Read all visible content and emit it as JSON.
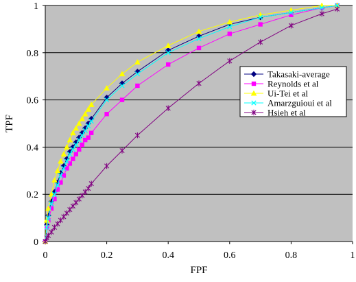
{
  "chart_data": {
    "type": "line",
    "xlabel": "FPF",
    "ylabel": "TPF",
    "xlim": [
      0,
      1
    ],
    "ylim": [
      0,
      1
    ],
    "x_ticks": [
      "0",
      "0.2",
      "0.4",
      "0.6",
      "0.8",
      "1"
    ],
    "y_ticks": [
      "0",
      "0.2",
      "0.4",
      "0.6",
      "0.8",
      "1"
    ],
    "grid": true,
    "plot_background": "#c0c0c0",
    "legend_position": "right",
    "series": [
      {
        "name": "Takasaki-average",
        "color": "#000080",
        "marker": "diamond",
        "x": [
          0,
          0.005,
          0.01,
          0.02,
          0.03,
          0.04,
          0.05,
          0.06,
          0.07,
          0.08,
          0.09,
          0.1,
          0.11,
          0.12,
          0.13,
          0.14,
          0.15,
          0.2,
          0.25,
          0.3,
          0.4,
          0.5,
          0.6,
          0.7,
          0.8,
          0.9,
          0.95
        ],
        "y": [
          0,
          0.07,
          0.11,
          0.17,
          0.21,
          0.25,
          0.29,
          0.32,
          0.35,
          0.38,
          0.4,
          0.42,
          0.44,
          0.46,
          0.48,
          0.5,
          0.52,
          0.61,
          0.67,
          0.72,
          0.81,
          0.87,
          0.92,
          0.95,
          0.97,
          0.99,
          1.0
        ]
      },
      {
        "name": "Reynolds et al",
        "color": "#ff00ff",
        "marker": "square",
        "x": [
          0,
          0.005,
          0.01,
          0.02,
          0.03,
          0.04,
          0.05,
          0.06,
          0.07,
          0.08,
          0.09,
          0.1,
          0.11,
          0.12,
          0.13,
          0.14,
          0.15,
          0.2,
          0.25,
          0.3,
          0.4,
          0.5,
          0.6,
          0.7,
          0.8,
          0.9,
          0.95
        ],
        "y": [
          0,
          0.06,
          0.09,
          0.14,
          0.18,
          0.22,
          0.25,
          0.28,
          0.31,
          0.33,
          0.35,
          0.37,
          0.39,
          0.41,
          0.43,
          0.44,
          0.46,
          0.54,
          0.6,
          0.66,
          0.75,
          0.82,
          0.88,
          0.92,
          0.96,
          0.99,
          1.0
        ]
      },
      {
        "name": "Ui-Tei et al",
        "color": "#ffff00",
        "marker": "triangle",
        "x": [
          0,
          0.005,
          0.01,
          0.02,
          0.03,
          0.04,
          0.05,
          0.06,
          0.07,
          0.08,
          0.09,
          0.1,
          0.11,
          0.12,
          0.13,
          0.14,
          0.15,
          0.2,
          0.25,
          0.3,
          0.4,
          0.5,
          0.6,
          0.7,
          0.8,
          0.9,
          0.95
        ],
        "y": [
          0,
          0.09,
          0.14,
          0.2,
          0.26,
          0.3,
          0.34,
          0.37,
          0.4,
          0.43,
          0.46,
          0.48,
          0.5,
          0.52,
          0.54,
          0.56,
          0.58,
          0.65,
          0.71,
          0.76,
          0.83,
          0.89,
          0.93,
          0.96,
          0.98,
          1.0,
          1.0
        ]
      },
      {
        "name": "Amarzguioui et al",
        "color": "#00ffff",
        "marker": "x",
        "x": [
          0,
          0.005,
          0.01,
          0.02,
          0.03,
          0.04,
          0.05,
          0.06,
          0.07,
          0.08,
          0.09,
          0.1,
          0.11,
          0.12,
          0.13,
          0.14,
          0.15,
          0.2,
          0.25,
          0.3,
          0.4,
          0.5,
          0.6,
          0.7,
          0.8,
          0.9,
          0.95
        ],
        "y": [
          0,
          0.06,
          0.1,
          0.16,
          0.2,
          0.24,
          0.28,
          0.31,
          0.34,
          0.37,
          0.39,
          0.41,
          0.43,
          0.45,
          0.47,
          0.49,
          0.51,
          0.6,
          0.66,
          0.71,
          0.8,
          0.86,
          0.91,
          0.95,
          0.97,
          0.99,
          1.0
        ]
      },
      {
        "name": "Hsieh et al",
        "color": "#800080",
        "marker": "asterisk",
        "x": [
          0,
          0.005,
          0.01,
          0.02,
          0.03,
          0.04,
          0.05,
          0.06,
          0.07,
          0.08,
          0.09,
          0.1,
          0.11,
          0.12,
          0.13,
          0.14,
          0.15,
          0.2,
          0.25,
          0.3,
          0.4,
          0.5,
          0.6,
          0.7,
          0.8,
          0.9,
          0.95
        ],
        "y": [
          0,
          0.015,
          0.025,
          0.04,
          0.06,
          0.075,
          0.09,
          0.105,
          0.12,
          0.135,
          0.15,
          0.165,
          0.18,
          0.195,
          0.21,
          0.225,
          0.245,
          0.32,
          0.385,
          0.45,
          0.565,
          0.67,
          0.765,
          0.845,
          0.915,
          0.965,
          0.985
        ]
      }
    ]
  }
}
